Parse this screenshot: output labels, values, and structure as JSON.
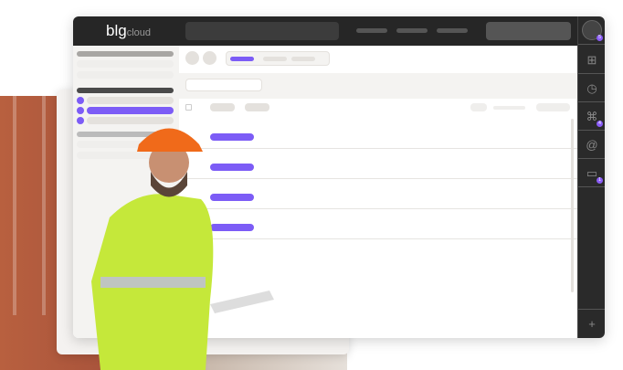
{
  "header": {
    "logo_main": "blg",
    "logo_sub": "cloud"
  },
  "rail": {
    "items": [
      {
        "icon": "add-comment-icon",
        "glyph": "⊞",
        "badge": ""
      },
      {
        "icon": "clock-icon",
        "glyph": "◷",
        "badge": ""
      },
      {
        "icon": "hierarchy-icon",
        "glyph": "⌘",
        "badge": "4"
      },
      {
        "icon": "at-icon",
        "glyph": "@",
        "badge": ""
      },
      {
        "icon": "chat-icon",
        "glyph": "▭",
        "badge": "1"
      }
    ],
    "avatar_badge": "5",
    "add_glyph": "+"
  },
  "colors": {
    "accent": "#7c5cf6",
    "header": "#262626"
  }
}
